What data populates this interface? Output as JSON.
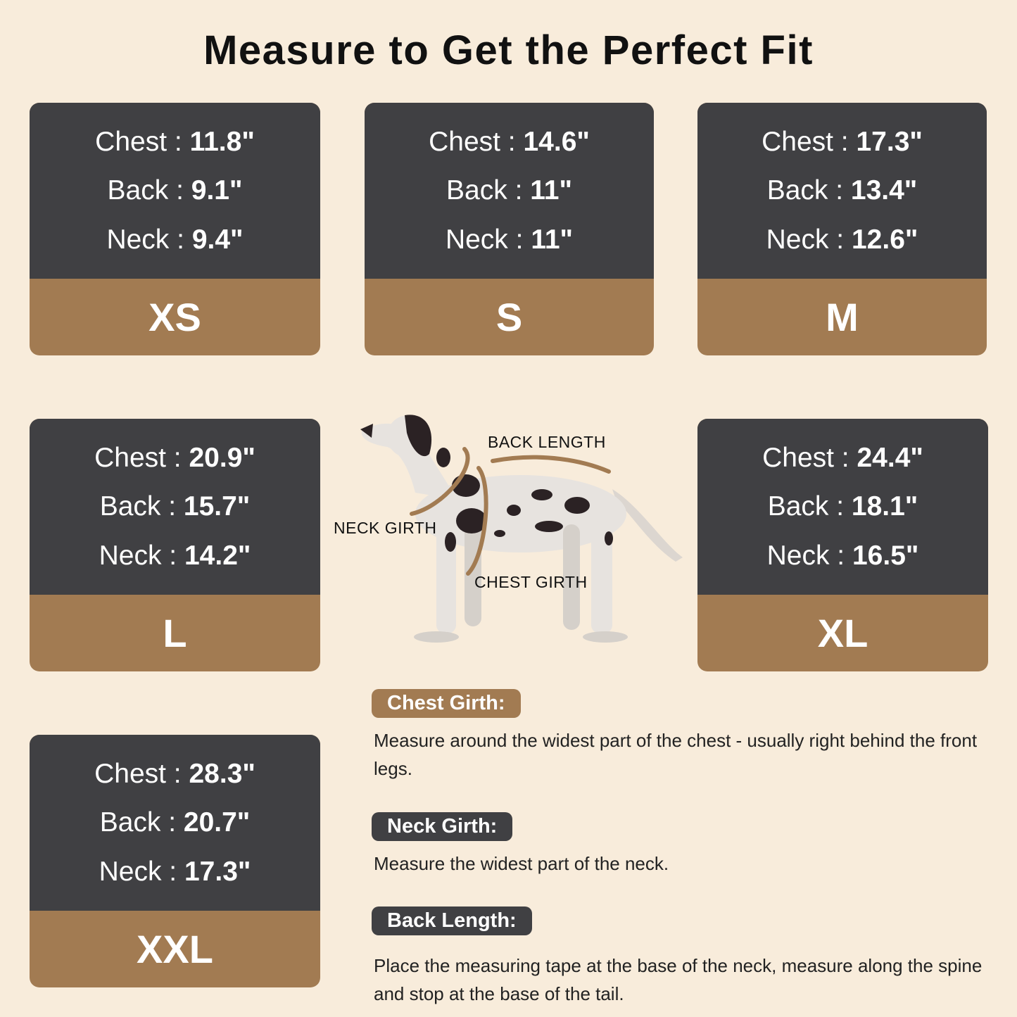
{
  "title": "Measure to Get the Perfect Fit",
  "colors": {
    "background": "#f8ecdb",
    "card_top": "#404043",
    "card_bottom": "#a27b52"
  },
  "sizes": [
    {
      "size": "XS",
      "chest": "11.8\"",
      "back": "9.1\"",
      "neck": "9.4\""
    },
    {
      "size": "S",
      "chest": "14.6\"",
      "back": "11\"",
      "neck": "11\""
    },
    {
      "size": "M",
      "chest": "17.3\"",
      "back": "13.4\"",
      "neck": "12.6\""
    },
    {
      "size": "L",
      "chest": "20.9\"",
      "back": "15.7\"",
      "neck": "14.2\""
    },
    {
      "size": "XL",
      "chest": "24.4\"",
      "back": "18.1\"",
      "neck": "16.5\""
    },
    {
      "size": "XXL",
      "chest": "28.3\"",
      "back": "20.7\"",
      "neck": "17.3\""
    }
  ],
  "labels": {
    "chest": "Chest : ",
    "back": "Back : ",
    "neck": "Neck : "
  },
  "diagram": {
    "back_length": "BACK LENGTH",
    "neck_girth": "NECK GIRTH",
    "chest_girth": "CHEST GIRTH"
  },
  "instructions": [
    {
      "heading": "Chest Girth:",
      "text": "Measure around the widest part of the chest - usually right behind the front legs."
    },
    {
      "heading": "Neck Girth:",
      "text": "Measure the widest part of the neck."
    },
    {
      "heading": "Back Length:",
      "text": "Place the measuring tape at the base of the neck, measure along the spine and stop at the base of the tail."
    }
  ]
}
